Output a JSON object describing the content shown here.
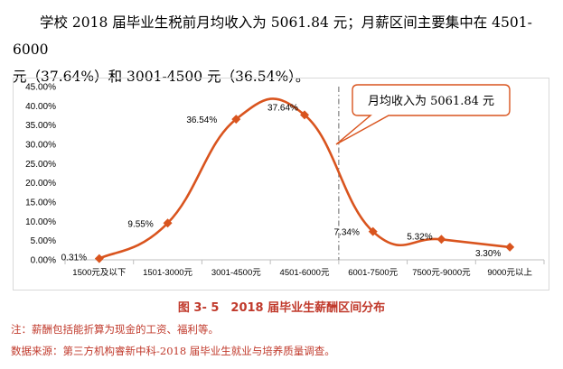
{
  "intro": {
    "line1": "学校 2018 届毕业生税前月均收入为 5061.84 元；月薪区间主要集中在 4501-6000",
    "line2": "元（37.64%）和 3001-4500 元（36.54%）。"
  },
  "callout": {
    "text": "月均收入为 5061.84 元"
  },
  "caption": "图 3- 5　2018 届毕业生薪酬区间分布",
  "notes": {
    "note1": "注：薪酬包括能折算为现金的工资、福利等。",
    "note2": "数据来源：第三方机构睿新中科-2018 届毕业生就业与培养质量调查。"
  },
  "colors": {
    "line": "#d9541e",
    "marker": "#d9541e",
    "caption": "#c0392b",
    "divider": "#7f7f7f"
  },
  "chart_data": {
    "type": "line",
    "smooth": true,
    "categories": [
      "1500元及以下",
      "1501-3000元",
      "3001-4500元",
      "4501-6000元",
      "6001-7500元",
      "7500元-9000元",
      "9000元以上"
    ],
    "values": [
      0.31,
      9.55,
      36.54,
      37.64,
      7.34,
      5.32,
      3.3
    ],
    "value_labels": [
      "0.31%",
      "9.55%",
      "36.54%",
      "37.64%",
      "7.34%",
      "5.32%",
      "3.30%"
    ],
    "ylim": [
      0,
      45
    ],
    "yticks": [
      0,
      5,
      10,
      15,
      20,
      25,
      30,
      35,
      40,
      45
    ],
    "ytick_labels": [
      "0.00%",
      "5.00%",
      "10.00%",
      "15.00%",
      "20.00%",
      "25.00%",
      "30.00%",
      "35.00%",
      "40.00%",
      "45.00%"
    ],
    "mean_marker": {
      "value": 5061.84,
      "style": "dash-dot vertical line"
    },
    "grid": false,
    "legend": "none"
  }
}
